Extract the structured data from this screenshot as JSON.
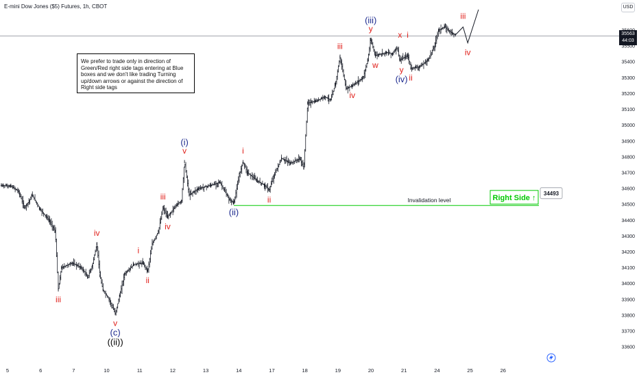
{
  "header": {
    "title": "E-mini Dow Jones ($5) Futures, 1h, CBOT",
    "currency": "USD",
    "last_price": "35563",
    "countdown": "44:03"
  },
  "note": "We prefer to trade only in direction of Green/Red right side tags entering at Blue boxes and we don't like trading Turning up/down arrows or against the direction of Right side tags",
  "invalidation": {
    "label": "Invalidation level",
    "value": 34493,
    "value_label": "34493",
    "tag": "Right Side",
    "arrow": "↑",
    "color": "#00c800"
  },
  "colors": {
    "bars": "#131722",
    "wave_red": "#e0201b",
    "wave_blue": "#1e2b8f",
    "wave_black": "#000000",
    "line_green": "#00c800"
  },
  "chart_data": {
    "type": "line",
    "title": "E-mini Dow Jones ($5) Futures, 1h, CBOT",
    "x_ticks": [
      "5",
      "6",
      "7",
      "10",
      "11",
      "12",
      "13",
      "14",
      "17",
      "18",
      "19",
      "20",
      "21",
      "24",
      "25",
      "26"
    ],
    "y_ticks": [
      33600,
      33700,
      33800,
      33900,
      34000,
      34100,
      34200,
      34300,
      34400,
      34500,
      34600,
      34700,
      34800,
      34900,
      35000,
      35100,
      35200,
      35300,
      35400,
      35500,
      35600
    ],
    "ylim": [
      33540,
      35730
    ],
    "x_range": [
      0,
      19
    ],
    "series": [
      {
        "values": [
          [
            0.0,
            34620
          ],
          [
            0.3,
            34615
          ],
          [
            0.55,
            34585
          ],
          [
            0.75,
            34480
          ],
          [
            0.9,
            34520
          ],
          [
            1.0,
            34560
          ],
          [
            1.25,
            34470
          ],
          [
            1.55,
            34400
          ],
          [
            1.75,
            34330
          ],
          [
            1.85,
            33960
          ],
          [
            1.95,
            34100
          ],
          [
            2.3,
            34130
          ],
          [
            2.6,
            34100
          ],
          [
            2.8,
            34040
          ],
          [
            2.95,
            34110
          ],
          [
            3.1,
            34250
          ],
          [
            3.2,
            34050
          ],
          [
            3.3,
            33960
          ],
          [
            3.5,
            33900
          ],
          [
            3.7,
            33810
          ],
          [
            3.85,
            33930
          ],
          [
            4.0,
            34060
          ],
          [
            4.3,
            34120
          ],
          [
            4.6,
            34130
          ],
          [
            4.75,
            34080
          ],
          [
            4.9,
            34250
          ],
          [
            5.1,
            34330
          ],
          [
            5.25,
            34480
          ],
          [
            5.4,
            34420
          ],
          [
            5.7,
            34500
          ],
          [
            5.85,
            34520
          ],
          [
            5.95,
            34770
          ],
          [
            6.1,
            34560
          ],
          [
            6.4,
            34600
          ],
          [
            6.8,
            34620
          ],
          [
            7.1,
            34640
          ],
          [
            7.4,
            34530
          ],
          [
            7.55,
            34510
          ],
          [
            7.75,
            34700
          ],
          [
            7.85,
            34770
          ],
          [
            8.0,
            34700
          ],
          [
            8.3,
            34650
          ],
          [
            8.55,
            34620
          ],
          [
            8.7,
            34590
          ],
          [
            8.85,
            34680
          ],
          [
            9.1,
            34790
          ],
          [
            9.4,
            34760
          ],
          [
            9.7,
            34790
          ],
          [
            9.82,
            34730
          ],
          [
            9.95,
            35140
          ],
          [
            10.2,
            35150
          ],
          [
            10.5,
            35180
          ],
          [
            10.7,
            35160
          ],
          [
            10.85,
            35260
          ],
          [
            11.0,
            35430
          ],
          [
            11.2,
            35230
          ],
          [
            11.4,
            35250
          ],
          [
            11.75,
            35300
          ],
          [
            11.9,
            35410
          ],
          [
            12.0,
            35540
          ],
          [
            12.15,
            35440
          ],
          [
            12.5,
            35460
          ],
          [
            12.7,
            35450
          ],
          [
            12.85,
            35490
          ],
          [
            12.95,
            35410
          ],
          [
            13.2,
            35440
          ],
          [
            13.3,
            35360
          ],
          [
            13.6,
            35370
          ],
          [
            13.85,
            35410
          ],
          [
            14.05,
            35490
          ],
          [
            14.2,
            35600
          ],
          [
            14.4,
            35620
          ],
          [
            14.65,
            35580
          ],
          [
            14.75,
            35570
          ]
        ]
      }
    ],
    "projection": [
      [
        14.75,
        35570
      ],
      [
        15.0,
        35620
      ],
      [
        15.15,
        35520
      ],
      [
        15.5,
        35730
      ]
    ],
    "invalidation_level": 34493,
    "wave_labels": [
      {
        "text": "iii",
        "x": 1.85,
        "y": 33960,
        "pos": "below",
        "color": "red"
      },
      {
        "text": "iv",
        "x": 3.1,
        "y": 34250,
        "pos": "above",
        "color": "red"
      },
      {
        "text": "v",
        "x": 3.7,
        "y": 33810,
        "pos": "below",
        "color": "red"
      },
      {
        "text": "(c)",
        "x": 3.7,
        "y": 33810,
        "pos": "below2",
        "color": "blue"
      },
      {
        "text": "((ii))",
        "x": 3.7,
        "y": 33810,
        "pos": "below3",
        "color": "black"
      },
      {
        "text": "i",
        "x": 4.45,
        "y": 34140,
        "pos": "above",
        "color": "red"
      },
      {
        "text": "ii",
        "x": 4.75,
        "y": 34080,
        "pos": "below",
        "color": "red"
      },
      {
        "text": "iii",
        "x": 5.25,
        "y": 34480,
        "pos": "above",
        "color": "red"
      },
      {
        "text": "iv",
        "x": 5.4,
        "y": 34420,
        "pos": "below",
        "color": "red"
      },
      {
        "text": "v",
        "x": 5.95,
        "y": 34770,
        "pos": "above",
        "color": "red"
      },
      {
        "text": "(i)",
        "x": 5.95,
        "y": 34770,
        "pos": "above2",
        "color": "blue"
      },
      {
        "text": "(ii)",
        "x": 7.55,
        "y": 34510,
        "pos": "below",
        "color": "blue"
      },
      {
        "text": "i",
        "x": 7.85,
        "y": 34770,
        "pos": "above",
        "color": "red"
      },
      {
        "text": "ii",
        "x": 8.7,
        "y": 34590,
        "pos": "below",
        "color": "red"
      },
      {
        "text": "iii",
        "x": 11.0,
        "y": 35430,
        "pos": "above",
        "color": "red"
      },
      {
        "text": "iv",
        "x": 11.4,
        "y": 35250,
        "pos": "below",
        "color": "red"
      },
      {
        "text": "y",
        "x": 12.0,
        "y": 35540,
        "pos": "above",
        "color": "red"
      },
      {
        "text": "(iii)",
        "x": 12.0,
        "y": 35540,
        "pos": "above2",
        "color": "blue"
      },
      {
        "text": "w",
        "x": 12.15,
        "y": 35440,
        "pos": "below",
        "color": "red"
      },
      {
        "text": "x",
        "x": 12.95,
        "y": 35500,
        "pos": "above",
        "color": "red"
      },
      {
        "text": "y",
        "x": 13.0,
        "y": 35410,
        "pos": "below",
        "color": "red"
      },
      {
        "text": "(iv)",
        "x": 13.0,
        "y": 35410,
        "pos": "below2",
        "color": "blue"
      },
      {
        "text": "i",
        "x": 13.2,
        "y": 35500,
        "pos": "above",
        "color": "red"
      },
      {
        "text": "ii",
        "x": 13.3,
        "y": 35360,
        "pos": "below",
        "color": "red"
      },
      {
        "text": "iii",
        "x": 15.0,
        "y": 35620,
        "pos": "above",
        "color": "red"
      },
      {
        "text": "iv",
        "x": 15.15,
        "y": 35520,
        "pos": "below",
        "color": "red"
      }
    ]
  }
}
